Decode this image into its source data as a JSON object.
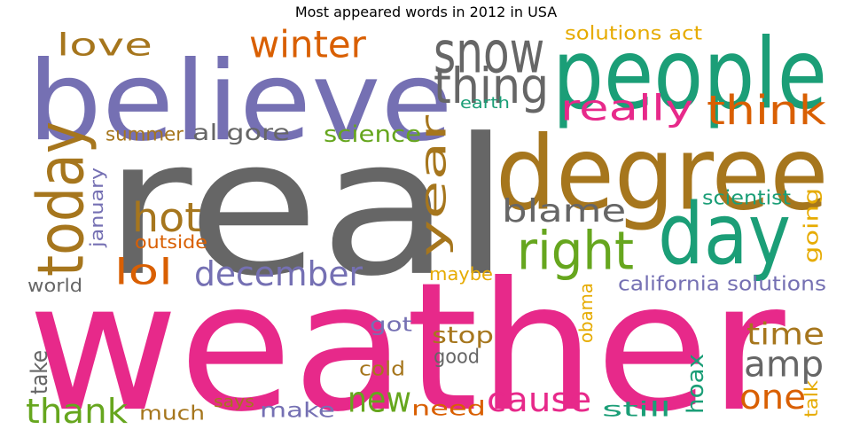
{
  "title": "Most appeared words in 2012 in USA",
  "palette": {
    "magenta": "#e7298a",
    "gray": "#666666",
    "purple": "#7570b3",
    "teal": "#1b9e77",
    "brown": "#a6761d",
    "orange": "#d95f02",
    "green": "#66a61e",
    "yellow": "#e6ab02"
  },
  "words": [
    {
      "text": "weather",
      "color": "#e7298a"
    },
    {
      "text": "real",
      "color": "#666666"
    },
    {
      "text": "believe",
      "color": "#7570b3"
    },
    {
      "text": "degree",
      "color": "#a6761d"
    },
    {
      "text": "people",
      "color": "#1b9e77"
    },
    {
      "text": "day",
      "color": "#1b9e77"
    },
    {
      "text": "snow",
      "color": "#666666"
    },
    {
      "text": "today",
      "color": "#a6761d"
    },
    {
      "text": "right",
      "color": "#66a61e"
    },
    {
      "text": "thing",
      "color": "#666666"
    },
    {
      "text": "think",
      "color": "#d95f02"
    },
    {
      "text": "winter",
      "color": "#d95f02"
    },
    {
      "text": "really",
      "color": "#e7298a"
    },
    {
      "text": "love",
      "color": "#a6761d"
    },
    {
      "text": "hot",
      "color": "#a6761d"
    },
    {
      "text": "december",
      "color": "#7570b3"
    },
    {
      "text": "year",
      "color": "#a6761d"
    },
    {
      "text": "blame",
      "color": "#666666"
    },
    {
      "text": "lol",
      "color": "#d95f02"
    },
    {
      "text": "cause",
      "color": "#e7298a"
    },
    {
      "text": "amp",
      "color": "#666666"
    },
    {
      "text": "time",
      "color": "#a6761d"
    },
    {
      "text": "thank",
      "color": "#66a61e"
    },
    {
      "text": "new",
      "color": "#66a61e"
    },
    {
      "text": "one",
      "color": "#d95f02"
    },
    {
      "text": "al gore",
      "color": "#666666"
    },
    {
      "text": "science",
      "color": "#66a61e"
    },
    {
      "text": "solutions act",
      "color": "#e6ab02"
    },
    {
      "text": "summer",
      "color": "#a6761d"
    },
    {
      "text": "earth",
      "color": "#1b9e77"
    },
    {
      "text": "january",
      "color": "#7570b3"
    },
    {
      "text": "outside",
      "color": "#d95f02"
    },
    {
      "text": "scientist",
      "color": "#1b9e77"
    },
    {
      "text": "going",
      "color": "#e6ab02"
    },
    {
      "text": "world",
      "color": "#666666"
    },
    {
      "text": "maybe",
      "color": "#e6ab02"
    },
    {
      "text": "california solutions",
      "color": "#7570b3"
    },
    {
      "text": "obama",
      "color": "#e6ab02"
    },
    {
      "text": "got",
      "color": "#7570b3"
    },
    {
      "text": "stop",
      "color": "#a6761d"
    },
    {
      "text": "good",
      "color": "#666666"
    },
    {
      "text": "take",
      "color": "#666666"
    },
    {
      "text": "cold",
      "color": "#a6761d"
    },
    {
      "text": "hoax",
      "color": "#1b9e77"
    },
    {
      "text": "much",
      "color": "#a6761d"
    },
    {
      "text": "says",
      "color": "#a6761d"
    },
    {
      "text": "make",
      "color": "#7570b3"
    },
    {
      "text": "need",
      "color": "#d95f02"
    },
    {
      "text": "still",
      "color": "#1b9e77"
    },
    {
      "text": "talk",
      "color": "#e6ab02"
    }
  ]
}
